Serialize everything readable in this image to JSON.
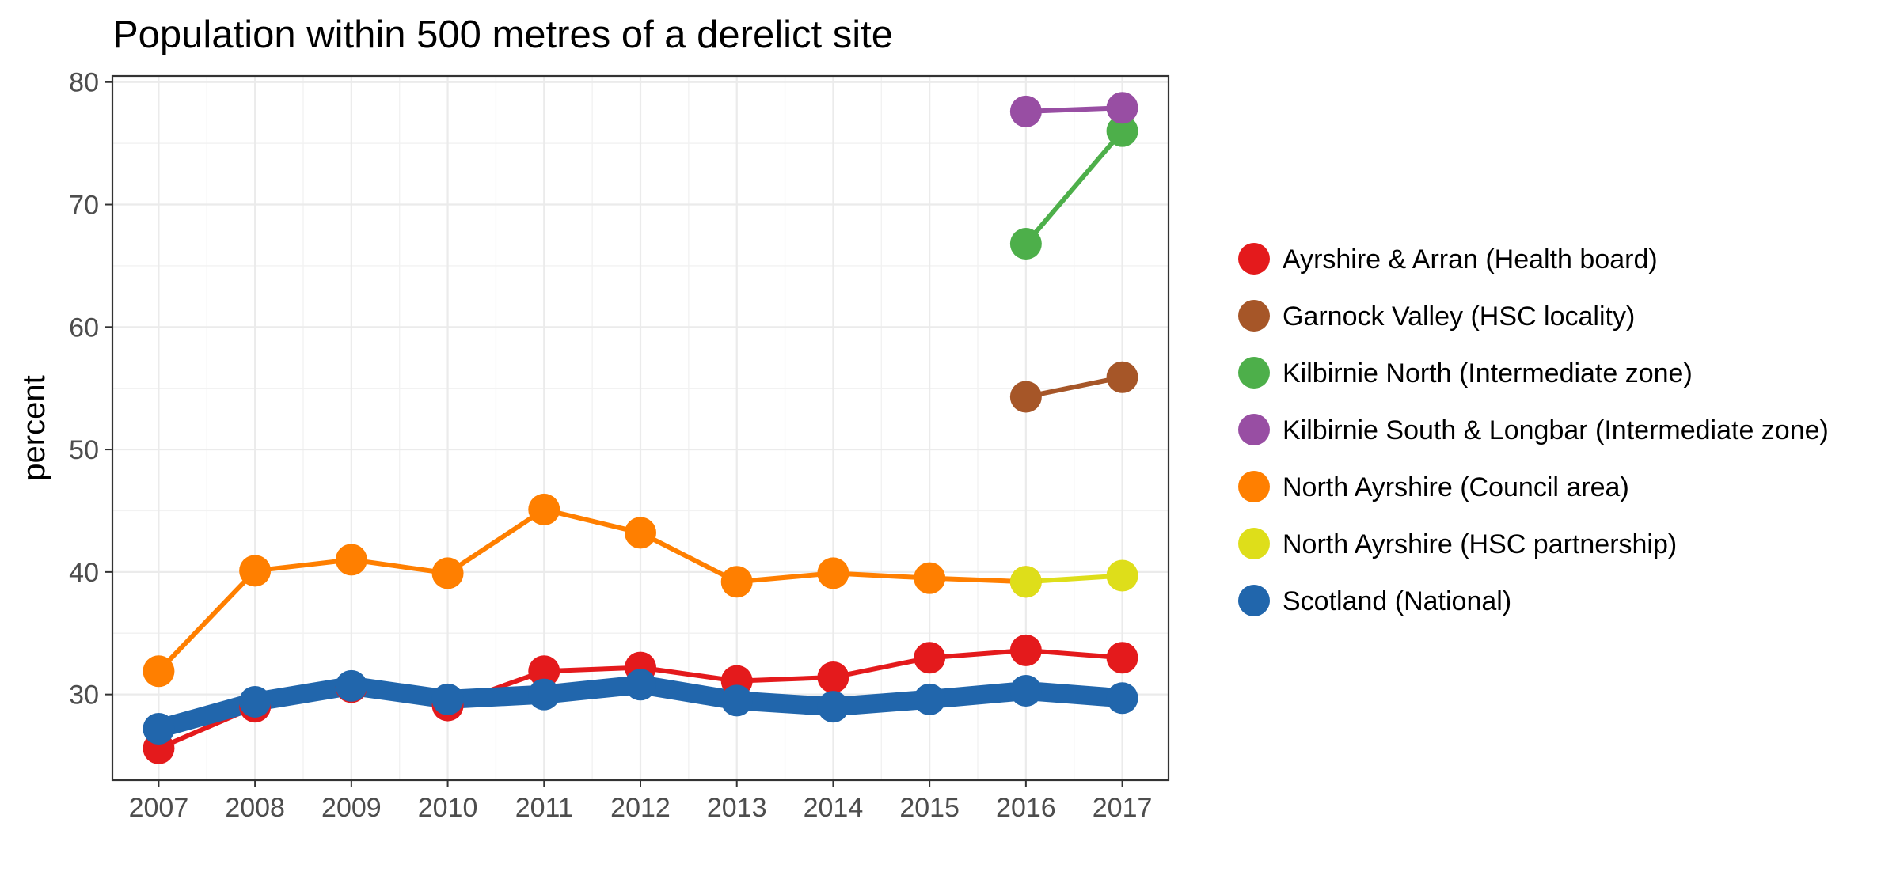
{
  "chart_data": {
    "type": "line",
    "title": "Population within 500 metres of a derelict site",
    "xlabel": "",
    "ylabel": "percent",
    "x": [
      2007,
      2008,
      2009,
      2010,
      2011,
      2012,
      2013,
      2014,
      2015,
      2016,
      2017
    ],
    "xlim": [
      2006.52,
      2017.48
    ],
    "ylim": [
      23.0,
      80.5
    ],
    "y_ticks": [
      30,
      40,
      50,
      60,
      70,
      80
    ],
    "grid": true,
    "legend_position": "right",
    "series": [
      {
        "name": "Ayrshire & Arran (Health board)",
        "color": "#E41A1C",
        "values": [
          25.6,
          29.0,
          30.6,
          29.1,
          31.9,
          32.2,
          31.1,
          31.4,
          33.0,
          33.6,
          33.0
        ]
      },
      {
        "name": "Garnock Valley (HSC locality)",
        "color": "#A65628",
        "values": [
          null,
          null,
          null,
          null,
          null,
          null,
          null,
          null,
          null,
          54.3,
          55.9
        ]
      },
      {
        "name": "Kilbirnie North (Intermediate zone)",
        "color": "#4DAF4A",
        "values": [
          null,
          null,
          null,
          null,
          null,
          null,
          null,
          null,
          null,
          66.8,
          76.0
        ]
      },
      {
        "name": "Kilbirnie South & Longbar (Intermediate zone)",
        "color": "#984EA3",
        "values": [
          null,
          null,
          null,
          null,
          null,
          null,
          null,
          null,
          null,
          77.6,
          77.9
        ]
      },
      {
        "name": "North Ayrshire (Council area)",
        "color": "#FF7F00",
        "values": [
          31.9,
          40.1,
          41.0,
          39.9,
          45.1,
          43.2,
          39.2,
          39.9,
          39.5,
          39.2,
          null
        ]
      },
      {
        "name": "North Ayrshire (HSC partnership)",
        "color": "#DEDE1A",
        "values": [
          null,
          null,
          null,
          null,
          null,
          null,
          null,
          null,
          null,
          39.2,
          39.7
        ]
      },
      {
        "name": "Scotland (National)",
        "color": "#2166AC",
        "values": [
          27.2,
          29.4,
          30.7,
          29.6,
          30.0,
          30.8,
          29.5,
          29.0,
          29.6,
          30.3,
          29.7
        ]
      }
    ]
  }
}
